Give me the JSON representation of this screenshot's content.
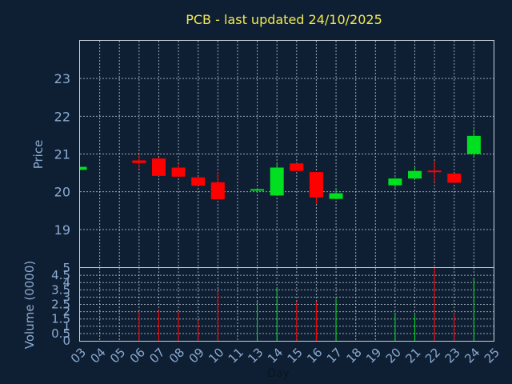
{
  "chart_data": {
    "type": "candlestick",
    "title": "PCB - last updated 24/10/2025",
    "xlabel": "Day",
    "x_ticks": [
      "03",
      "04",
      "05",
      "06",
      "07",
      "08",
      "09",
      "10",
      "11",
      "13",
      "14",
      "15",
      "16",
      "17",
      "18",
      "19",
      "20",
      "21",
      "22",
      "23",
      "24",
      "25"
    ],
    "price_panel": {
      "ylabel": "Price",
      "ylim": [
        18.0,
        24.0
      ],
      "y_ticks": [
        19,
        20,
        21,
        22,
        23
      ],
      "candles": [
        {
          "day": "03",
          "open": 20.58,
          "high": 20.66,
          "low": 20.57,
          "close": 20.66
        },
        {
          "day": "06",
          "open": 20.83,
          "high": 20.99,
          "low": 20.6,
          "close": 20.76
        },
        {
          "day": "07",
          "open": 20.88,
          "high": 20.9,
          "low": 20.42,
          "close": 20.42
        },
        {
          "day": "08",
          "open": 20.64,
          "high": 20.74,
          "low": 20.4,
          "close": 20.4
        },
        {
          "day": "09",
          "open": 20.38,
          "high": 20.4,
          "low": 20.16,
          "close": 20.16
        },
        {
          "day": "10",
          "open": 20.25,
          "high": 20.52,
          "low": 19.8,
          "close": 19.8
        },
        {
          "day": "13",
          "open": 20.03,
          "high": 20.1,
          "low": 19.97,
          "close": 20.07
        },
        {
          "day": "14",
          "open": 19.9,
          "high": 20.76,
          "low": 19.9,
          "close": 20.64
        },
        {
          "day": "15",
          "open": 20.75,
          "high": 20.76,
          "low": 20.55,
          "close": 20.55
        },
        {
          "day": "16",
          "open": 20.52,
          "high": 20.52,
          "low": 19.68,
          "close": 19.85
        },
        {
          "day": "17",
          "open": 19.81,
          "high": 20.07,
          "low": 19.8,
          "close": 19.96
        },
        {
          "day": "20",
          "open": 20.17,
          "high": 20.37,
          "low": 20.1,
          "close": 20.35
        },
        {
          "day": "21",
          "open": 20.35,
          "high": 20.66,
          "low": 20.35,
          "close": 20.55
        },
        {
          "day": "22",
          "open": 20.56,
          "high": 20.82,
          "low": 20.25,
          "close": 20.52
        },
        {
          "day": "23",
          "open": 20.48,
          "high": 20.5,
          "low": 20.23,
          "close": 20.24
        },
        {
          "day": "24",
          "open": 21.0,
          "high": 21.65,
          "low": 20.92,
          "close": 21.48
        }
      ]
    },
    "volume_panel": {
      "ylabel": "Volume (0000)",
      "ylim": [
        0,
        5
      ],
      "y_ticks": [
        "0",
        "0.5",
        "1",
        "1.5",
        "2",
        "2.5",
        "3",
        "3.5",
        "4",
        "4.5",
        "5"
      ],
      "bars": [
        {
          "day": "06",
          "value": 2.0,
          "direction": "down"
        },
        {
          "day": "07",
          "value": 2.1,
          "direction": "down"
        },
        {
          "day": "08",
          "value": 2.0,
          "direction": "down"
        },
        {
          "day": "09",
          "value": 1.4,
          "direction": "down"
        },
        {
          "day": "10",
          "value": 3.4,
          "direction": "down"
        },
        {
          "day": "13",
          "value": 2.7,
          "direction": "up"
        },
        {
          "day": "14",
          "value": 3.6,
          "direction": "up"
        },
        {
          "day": "15",
          "value": 2.7,
          "direction": "down"
        },
        {
          "day": "16",
          "value": 2.7,
          "direction": "down"
        },
        {
          "day": "17",
          "value": 2.9,
          "direction": "up"
        },
        {
          "day": "20",
          "value": 1.9,
          "direction": "up"
        },
        {
          "day": "21",
          "value": 1.8,
          "direction": "up"
        },
        {
          "day": "22",
          "value": 5.0,
          "direction": "down"
        },
        {
          "day": "23",
          "value": 1.9,
          "direction": "down"
        },
        {
          "day": "24",
          "value": 4.3,
          "direction": "up"
        }
      ]
    },
    "grid": true,
    "colors": {
      "background": "#0f1f33",
      "up": "#00e020",
      "down": "#ff0000",
      "grid": "#c8d0dc",
      "title": "#f2e94e",
      "axis_text": "#8aaad0"
    }
  }
}
